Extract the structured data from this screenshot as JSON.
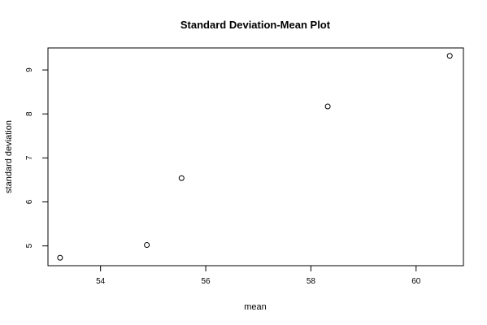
{
  "chart_data": {
    "type": "scatter",
    "title": "Standard Deviation-Mean Plot",
    "xlabel": "mean",
    "ylabel": "standard deviation",
    "xlim": [
      53.0,
      60.9
    ],
    "ylim": [
      4.55,
      9.5
    ],
    "x_ticks": [
      54,
      56,
      58,
      60
    ],
    "y_ticks": [
      5,
      6,
      7,
      8,
      9
    ],
    "grid": false,
    "legend": "none",
    "marker": "open-circle",
    "points": [
      {
        "x": 53.23,
        "y": 4.73
      },
      {
        "x": 54.88,
        "y": 5.02
      },
      {
        "x": 55.54,
        "y": 6.54
      },
      {
        "x": 58.32,
        "y": 8.17
      },
      {
        "x": 60.64,
        "y": 9.32
      }
    ]
  }
}
